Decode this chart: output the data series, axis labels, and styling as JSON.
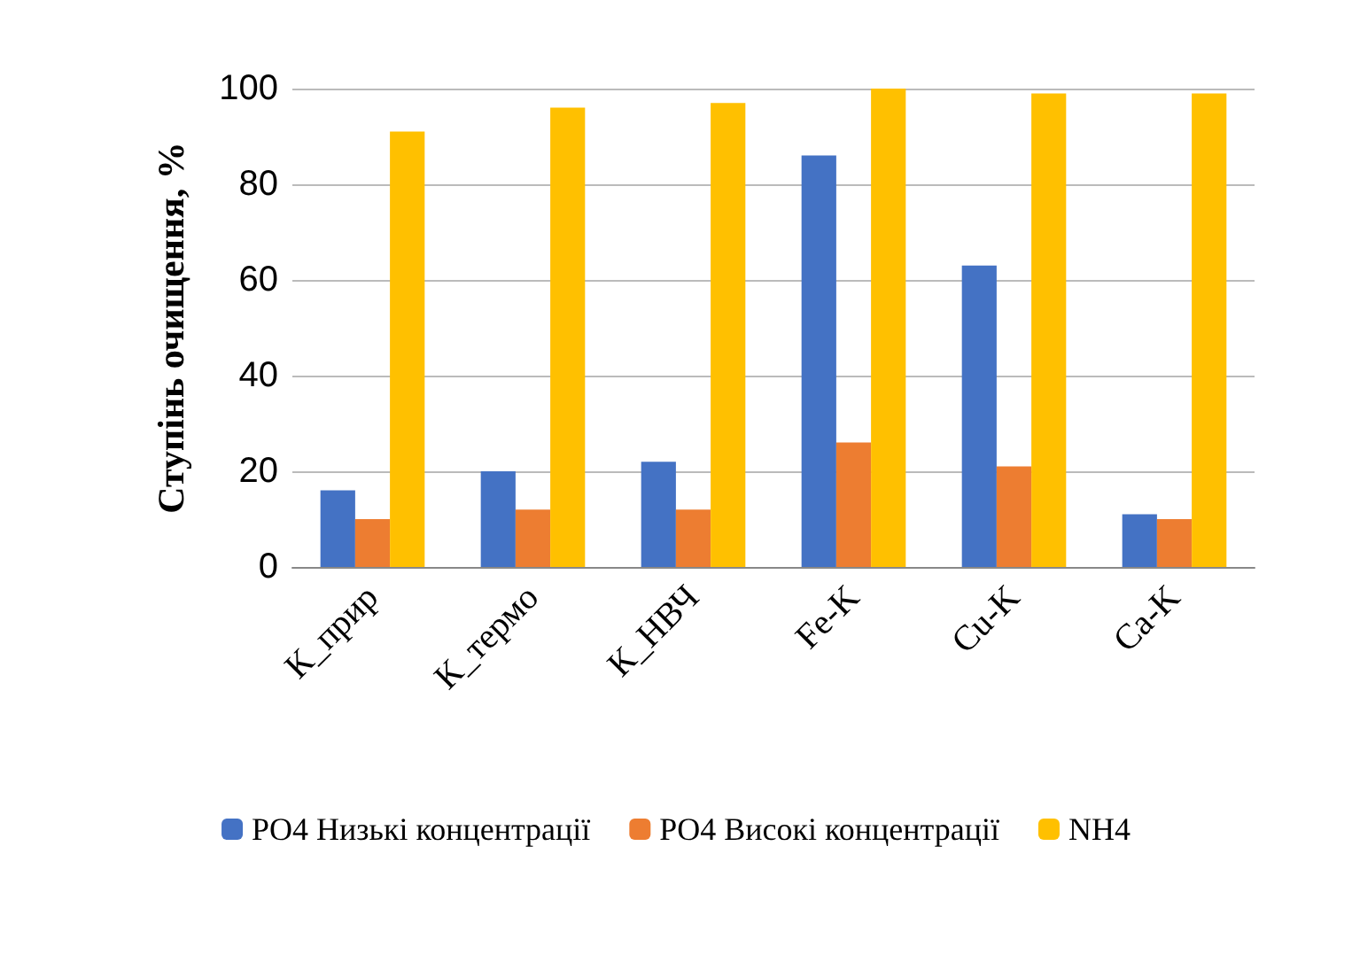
{
  "chart_data": {
    "type": "bar",
    "ylabel": "Ступінь очищення, %",
    "categories": [
      "К_прир",
      "К_термо",
      "К_НВЧ",
      "Fe-K",
      "Cu-K",
      "Ca-K"
    ],
    "series": [
      {
        "name": "PO4 Низькі концентрації",
        "color": "#4472c4",
        "values": [
          16,
          20,
          22,
          86,
          63,
          11
        ]
      },
      {
        "name": "PO4 Високі концентрації",
        "color": "#ed7d31",
        "values": [
          10,
          12,
          12,
          26,
          21,
          10
        ]
      },
      {
        "name": "NH4",
        "color": "#ffc000",
        "values": [
          91,
          96,
          97,
          100,
          99,
          99
        ]
      }
    ],
    "ylim": [
      0,
      100
    ],
    "yticks": [
      0,
      20,
      40,
      60,
      80,
      100
    ],
    "grid": "y",
    "legend": "bottom"
  }
}
